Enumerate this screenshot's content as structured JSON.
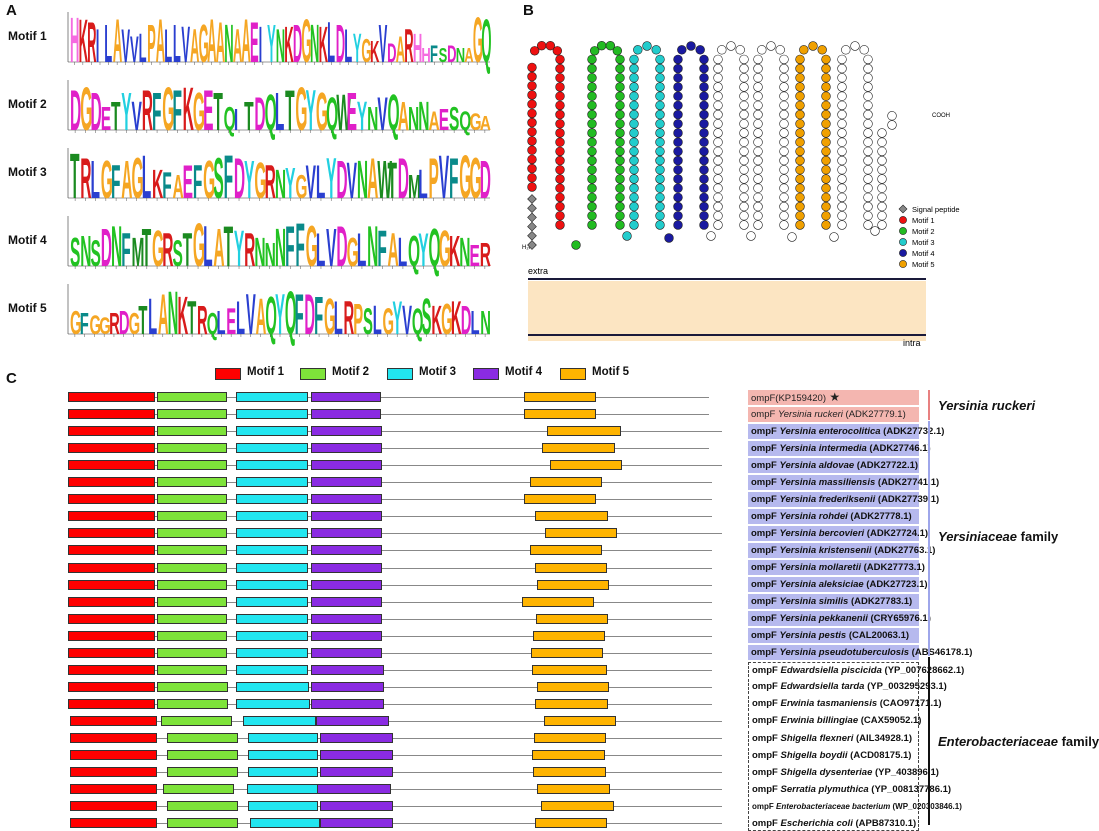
{
  "panels": {
    "a": "A",
    "b": "B",
    "c": "C"
  },
  "colors": {
    "motif1": "#ff0000",
    "motif2": "#7ee33a",
    "motif3": "#22e6f0",
    "motif4": "#8a2be2",
    "motif5": "#ffb400",
    "signal": "#777777",
    "membrane": "#fce5c2",
    "ruckeri_bg": "#f4b6b0",
    "yersinia_bg": "#b6b9ee"
  },
  "panel_a": {
    "motifs": [
      {
        "label": "Motif 1",
        "sequence": "HKRILAVVLPALLVAGAANAAEIYNKDGNKLDLYGKVDARHHFSDNAGQ"
      },
      {
        "label": "Motif 2",
        "sequence": "DGDETYVRFGFKGETQITDQLTGYGQWEYNVQANNAESQGA"
      },
      {
        "label": "Motif 3",
        "sequence": "TRLGFAGLKFAEFGSFDYGRNYGVLYDVNAWTDMLPVFGGD"
      },
      {
        "label": "Motif 4",
        "sequence": "SNSDNFMTGRSTGLATYRNNNFFGLVDGLNFALQYQGKNER"
      },
      {
        "label": "Motif 5",
        "sequence": "GFGGRDGTLANKTRQLELVAQYQFDFGLRPSLGYVQSKGKDLN"
      }
    ]
  },
  "panel_b": {
    "nterm": "H₂N",
    "cterm": "COOH",
    "extra_label": "extra",
    "intra_label": "intra",
    "legend": [
      {
        "name": "Signal peptide",
        "color": "#888888",
        "shape": "diamond"
      },
      {
        "name": "Motif 1",
        "color": "#ee1111",
        "shape": "circle"
      },
      {
        "name": "Motif 2",
        "color": "#22bb22",
        "shape": "circle"
      },
      {
        "name": "Motif 3",
        "color": "#22cccc",
        "shape": "circle"
      },
      {
        "name": "Motif 4",
        "color": "#1a1aa0",
        "shape": "circle"
      },
      {
        "name": "Motif 5",
        "color": "#f0a000",
        "shape": "circle"
      }
    ]
  },
  "panel_c": {
    "legend": [
      "Motif 1",
      "Motif 2",
      "Motif 3",
      "Motif 4",
      "Motif 5"
    ],
    "groups": [
      {
        "name": "Yersinia ruckeri"
      },
      {
        "name_italic": "Yersiniaceae",
        "name_rest": " family"
      },
      {
        "name_italic": "Enterobacteriaceae",
        "name_rest": " family"
      }
    ],
    "sequences": [
      {
        "prefix": "ompF(KP159420)",
        "species": "",
        "acc": "",
        "star": "★",
        "group": 0
      },
      {
        "prefix": "ompF ",
        "species": "Yersinia ruckeri",
        "acc": " (ADK27779.1)",
        "group": 0
      },
      {
        "prefix": "ompF ",
        "species": "Yersinia enterocolitica",
        "acc": " (ADK27732.1)",
        "group": 1
      },
      {
        "prefix": "ompF ",
        "species": "Yersinia intermedia",
        "acc": " (ADK27746.1)",
        "group": 1
      },
      {
        "prefix": "ompF ",
        "species": "Yersinia aldovae",
        "acc": " (ADK27722.1)",
        "group": 1
      },
      {
        "prefix": "ompF ",
        "species": "Yersinia massiliensis",
        "acc": " (ADK27741.1)",
        "group": 1
      },
      {
        "prefix": "ompF ",
        "species": "Yersinia frederiksenii",
        "acc": " (ADK27739.1)",
        "group": 1
      },
      {
        "prefix": "ompF ",
        "species": "Yersinia rohdei",
        "acc": " (ADK27778.1)",
        "group": 1
      },
      {
        "prefix": "ompF ",
        "species": "Yersinia bercovieri",
        "acc": " (ADK27724.1)",
        "group": 1
      },
      {
        "prefix": "ompF ",
        "species": "Yersinia kristensenii",
        "acc": " (ADK27763.1)",
        "group": 1
      },
      {
        "prefix": "ompF ",
        "species": "Yersinia mollaretii",
        "acc": " (ADK27773.1)",
        "group": 1
      },
      {
        "prefix": "ompF ",
        "species": "Yersinia aleksiciae",
        "acc": " (ADK27723.1)",
        "group": 1
      },
      {
        "prefix": "ompF ",
        "species": "Yersinia similis",
        "acc": " (ADK27783.1)",
        "group": 1
      },
      {
        "prefix": "ompF ",
        "species": "Yersinia pekkanenii",
        "acc": " (CRY65976.1)",
        "group": 1
      },
      {
        "prefix": "ompF ",
        "species": "Yersinia pestis",
        "acc": " (CAL20063.1)",
        "group": 1
      },
      {
        "prefix": "ompF ",
        "species": "Yersinia pseudotuberculosis",
        "acc": " (ABS46178.1)",
        "group": 1
      },
      {
        "prefix": "ompF ",
        "species": "Edwardsiella piscicida",
        "acc": " (YP_007628662.1)",
        "group": 2
      },
      {
        "prefix": "ompF ",
        "species": "Edwardsiella tarda",
        "acc": " (YP_003295293.1)",
        "group": 2
      },
      {
        "prefix": "ompF ",
        "species": "Erwinia tasmaniensis",
        "acc": " (CAO97171.1)",
        "group": 2
      },
      {
        "prefix": "ompF ",
        "species": "Erwinia billingiae",
        "acc": " (CAX59052.1)",
        "group": 2
      },
      {
        "prefix": "ompF ",
        "species": "Shigella flexneri",
        "acc": " (AIL34928.1)",
        "group": 2
      },
      {
        "prefix": "ompF ",
        "species": "Shigella boydii",
        "acc": " (ACD08175.1)",
        "group": 2
      },
      {
        "prefix": "ompF ",
        "species": "Shigella dysenteriae",
        "acc": " (YP_403896.1)",
        "group": 2
      },
      {
        "prefix": "ompF ",
        "species": "Serratia plymuthica",
        "acc": " (YP_008137786.1)",
        "group": 2
      },
      {
        "prefix": "ompF ",
        "species": "Enterobacteriaceae bacterium",
        "acc": " (WP_020303846.1)",
        "group": 2
      },
      {
        "prefix": "ompF ",
        "species": "Escherichia coli",
        "acc": " (APB87310.1)",
        "group": 2
      }
    ]
  }
}
